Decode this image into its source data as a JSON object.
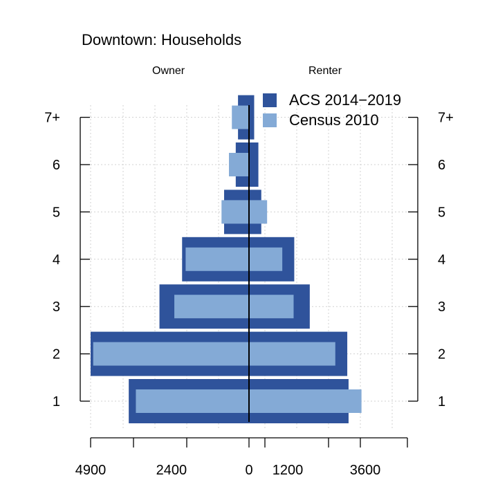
{
  "chart_data": {
    "type": "bar",
    "title": "Downtown: Households",
    "left_label": "Owner",
    "right_label": "Renter",
    "categories": [
      "1",
      "2",
      "3",
      "4",
      "5",
      "6",
      "7+"
    ],
    "series": [
      {
        "name": "ACS 2014−2019",
        "color": "#2f539b",
        "owner": [
          3720,
          4900,
          2770,
          2070,
          770,
          410,
          340
        ],
        "renter": [
          3080,
          3040,
          1880,
          1400,
          380,
          290,
          160
        ]
      },
      {
        "name": "Census 2010",
        "color": "#84aad6",
        "owner": [
          3500,
          4820,
          2310,
          1960,
          850,
          620,
          530
        ],
        "renter": [
          3480,
          2670,
          1380,
          1030,
          560,
          0,
          0
        ]
      }
    ],
    "x_ticks": [
      {
        "value": -4900,
        "label": "4900"
      },
      {
        "value": -2400,
        "label": "2400"
      },
      {
        "value": 0,
        "label": "0"
      },
      {
        "value": 1200,
        "label": "1200"
      },
      {
        "value": 3600,
        "label": "3600"
      }
    ],
    "xlim": [
      -4900,
      4900
    ],
    "grid": true,
    "legend_position": "top-right"
  }
}
